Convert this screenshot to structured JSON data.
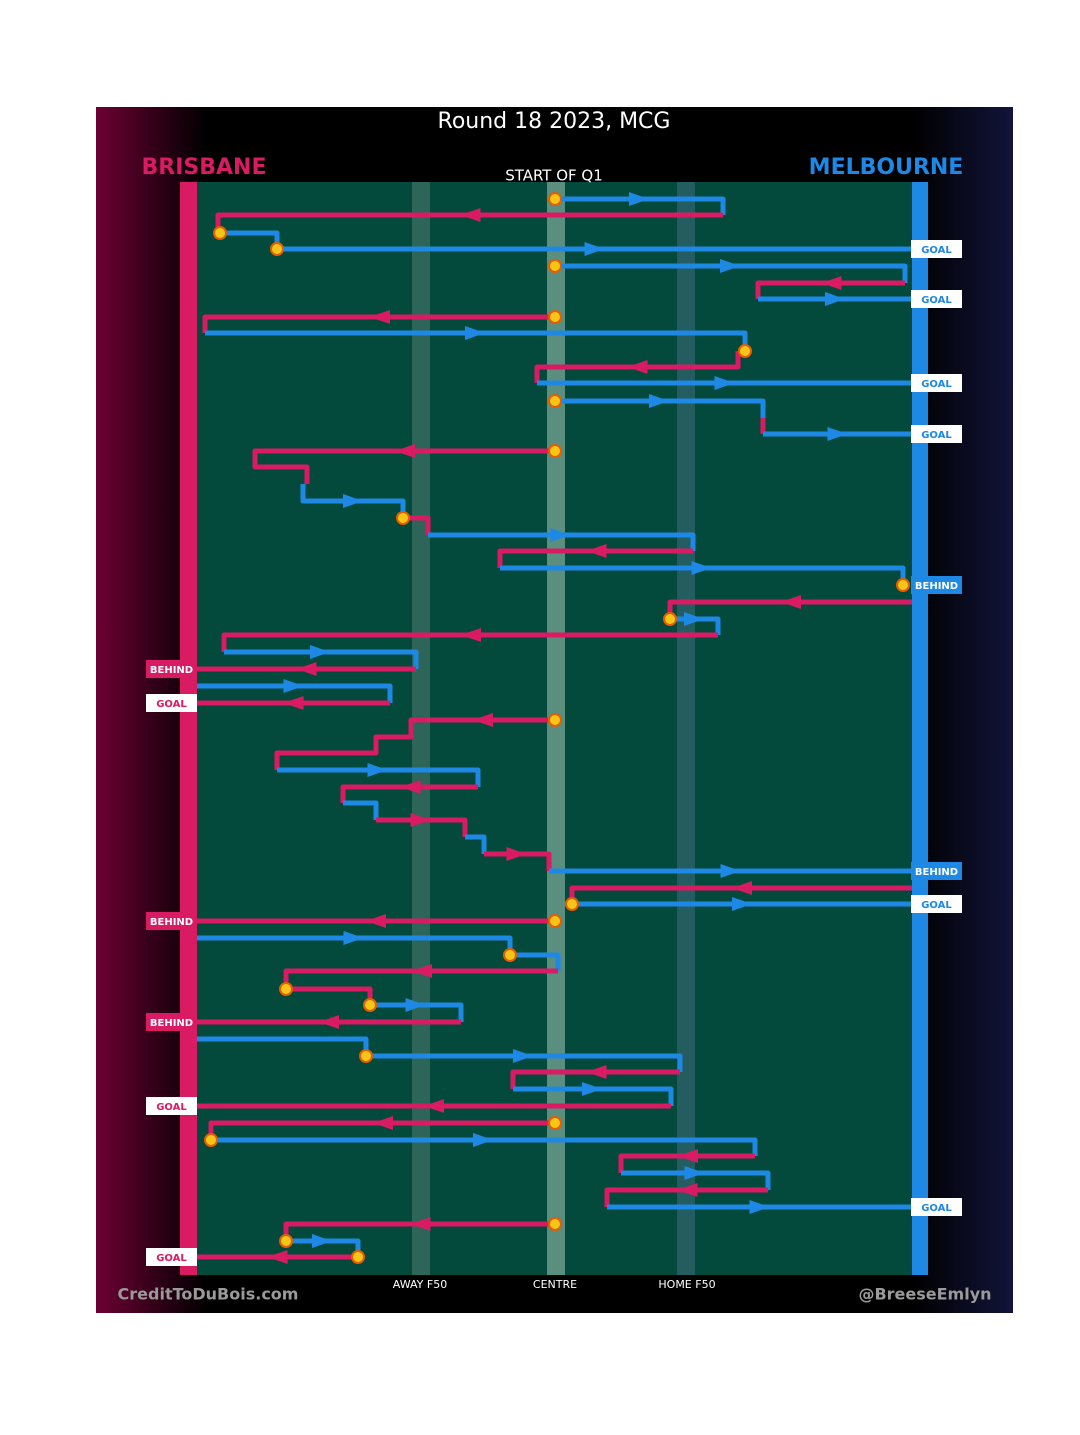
{
  "header": {
    "title": "Round 18 2023, MCG",
    "home_team": "BRISBANE",
    "away_team": "MELBOURNE",
    "period": "START OF Q1"
  },
  "zones": [
    "AWAY F50",
    "CENTRE",
    "HOME F50"
  ],
  "scores": [
    "GOAL",
    "GOAL",
    "GOAL",
    "GOAL",
    "BEHIND",
    "BEHIND",
    "GOAL",
    "BEHIND",
    "GOAL",
    "BEHIND",
    "BEHIND",
    "GOAL",
    "GOAL",
    "GOAL"
  ],
  "footer": {
    "left": "CreditToDuBois.com",
    "right": "@BreeseEmlyn"
  }
}
